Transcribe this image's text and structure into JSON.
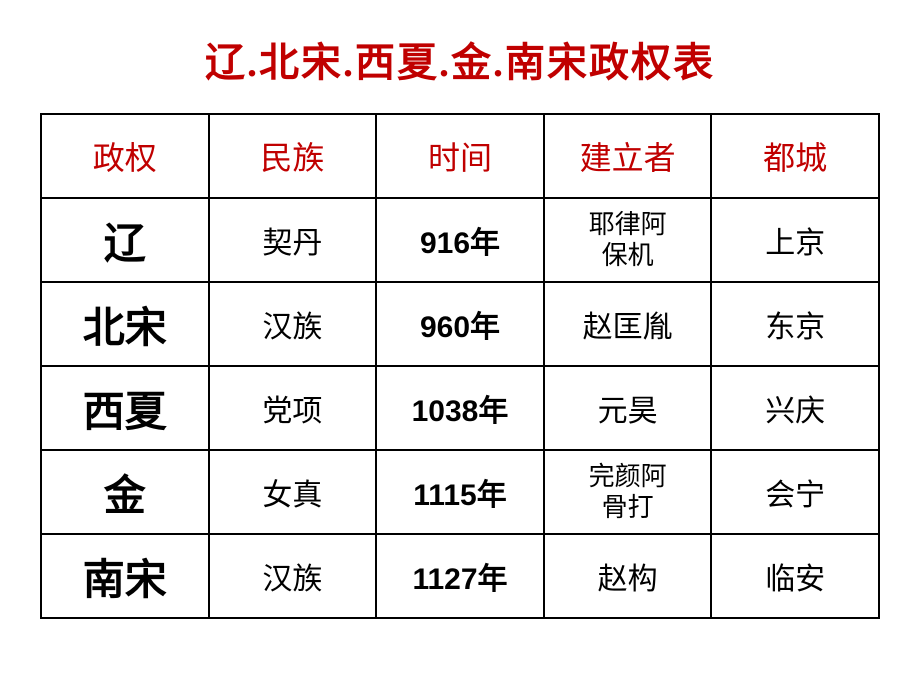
{
  "title": "辽.北宋.西夏.金.南宋政权表",
  "colors": {
    "title_color": "#c00000",
    "header_color": "#c00000",
    "text_color": "#000000",
    "border_color": "#000000",
    "background": "#ffffff"
  },
  "typography": {
    "title_fontsize": 40,
    "header_fontsize": 32,
    "cell_fontsize": 30,
    "regime_fontsize": 42,
    "small_fontsize": 26
  },
  "table": {
    "columns": [
      "政权",
      "民族",
      "时间",
      "建立者",
      "都城"
    ],
    "rows": [
      {
        "regime": "辽",
        "ethnic": "契丹",
        "time": "916年",
        "founder": "耶律阿保机",
        "capital": "上京",
        "founder_small": true
      },
      {
        "regime": "北宋",
        "ethnic": "汉族",
        "time": "960年",
        "founder": "赵匡胤",
        "capital": "东京",
        "founder_small": false
      },
      {
        "regime": "西夏",
        "ethnic": "党项",
        "time": "1038年",
        "founder": "元昊",
        "capital": "兴庆",
        "founder_small": false
      },
      {
        "regime": "金",
        "ethnic": "女真",
        "time": "1115年",
        "founder": "完颜阿骨打",
        "capital": "会宁",
        "founder_small": true
      },
      {
        "regime": "南宋",
        "ethnic": "汉族",
        "time": "1127年",
        "founder": "赵构",
        "capital": "临安",
        "founder_small": false
      }
    ]
  }
}
